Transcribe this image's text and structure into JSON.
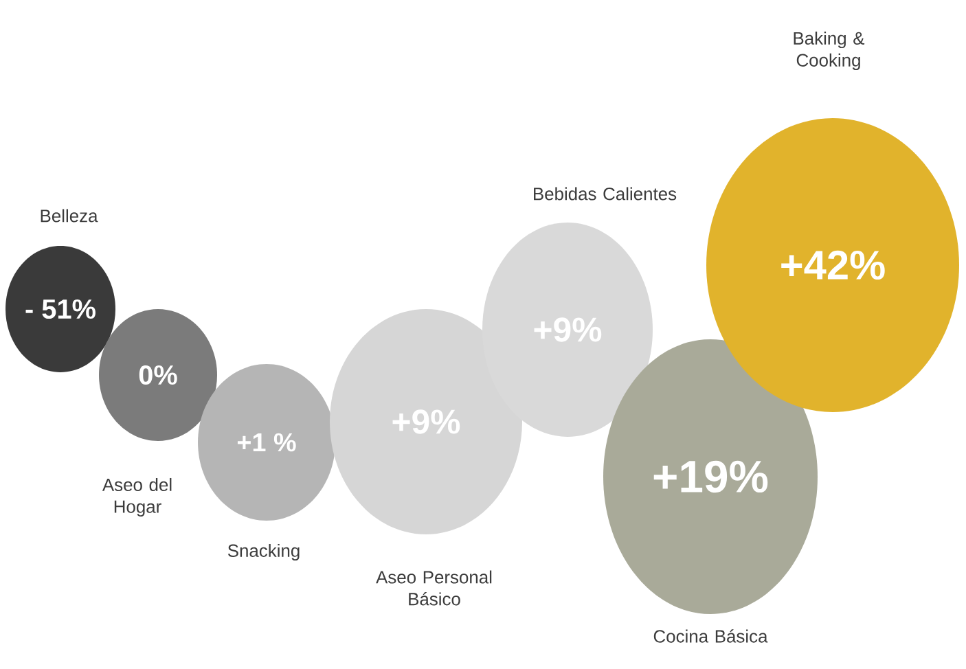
{
  "chart_data": {
    "type": "other",
    "categories": [
      "Belleza",
      "Aseo del Hogar",
      "Snacking",
      "Aseo Personal Básico",
      "Bebidas Calientes",
      "Cocina Básica",
      "Baking & Cooking"
    ],
    "values": [
      -51,
      0,
      1,
      9,
      9,
      19,
      42
    ],
    "value_labels": [
      "- 51%",
      "0%",
      "+1 %",
      "+9%",
      "+9%",
      "+19%",
      "+42%"
    ],
    "colors": [
      "#3a3a3a",
      "#7b7b7b",
      "#b5b5b5",
      "#d6d6d6",
      "#d9d9d9",
      "#a9aa99",
      "#e1b32c"
    ]
  }
}
